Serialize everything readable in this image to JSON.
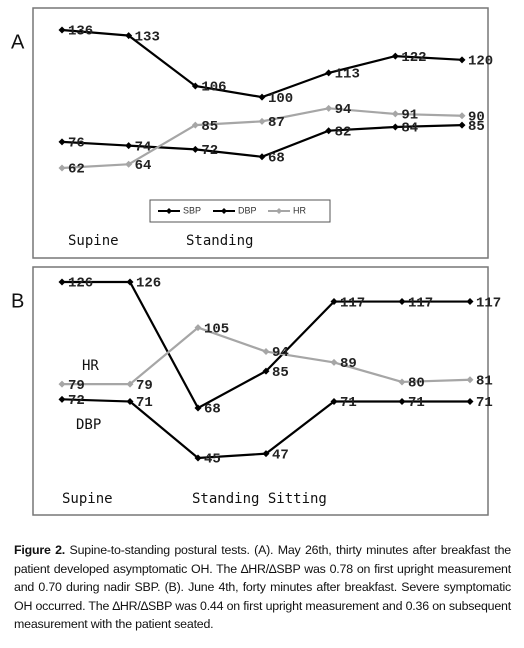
{
  "chart_data": [
    {
      "type": "line",
      "panel_label": "A",
      "series": [
        {
          "name": "SBP",
          "color": "#000000",
          "values": [
            136,
            133,
            106,
            100,
            113,
            122,
            120
          ]
        },
        {
          "name": "DBP",
          "color": "#000000",
          "values": [
            76,
            74,
            72,
            68,
            82,
            84,
            85
          ]
        },
        {
          "name": "HR",
          "color": "#a6a6a6",
          "values": [
            62,
            64,
            85,
            87,
            94,
            91,
            90
          ]
        }
      ],
      "annotations": [
        "Supine",
        "Standing"
      ],
      "legend": "bottom"
    },
    {
      "type": "line",
      "panel_label": "B",
      "series": [
        {
          "color": "#000000",
          "values": [
            126,
            126,
            68,
            85,
            117,
            117,
            117
          ]
        },
        {
          "name": "HR",
          "color": "#a6a6a6",
          "values": [
            79,
            79,
            105,
            94,
            89,
            80,
            81
          ]
        },
        {
          "name": "DBP",
          "color": "#000000",
          "values": [
            72,
            71,
            45,
            47,
            71,
            71,
            71
          ]
        }
      ],
      "annotations": [
        "Supine",
        "Standing  Sitting"
      ]
    }
  ],
  "caption": {
    "label": "Figure 2.",
    "text": "Supine-to-standing postural tests. (A). May 26th, thirty minutes after breakfast the patient developed asymptomatic OH. The ∆HR/∆SBP was 0.78 on first upright measurement and 0.70 during nadir SBP. (B). June 4th, forty minutes after breakfast. Severe symptomatic OH occurred. The ∆HR/∆SBP was 0.44 on first upright measurement and 0.36 on subsequent measurement with the patient seated."
  }
}
